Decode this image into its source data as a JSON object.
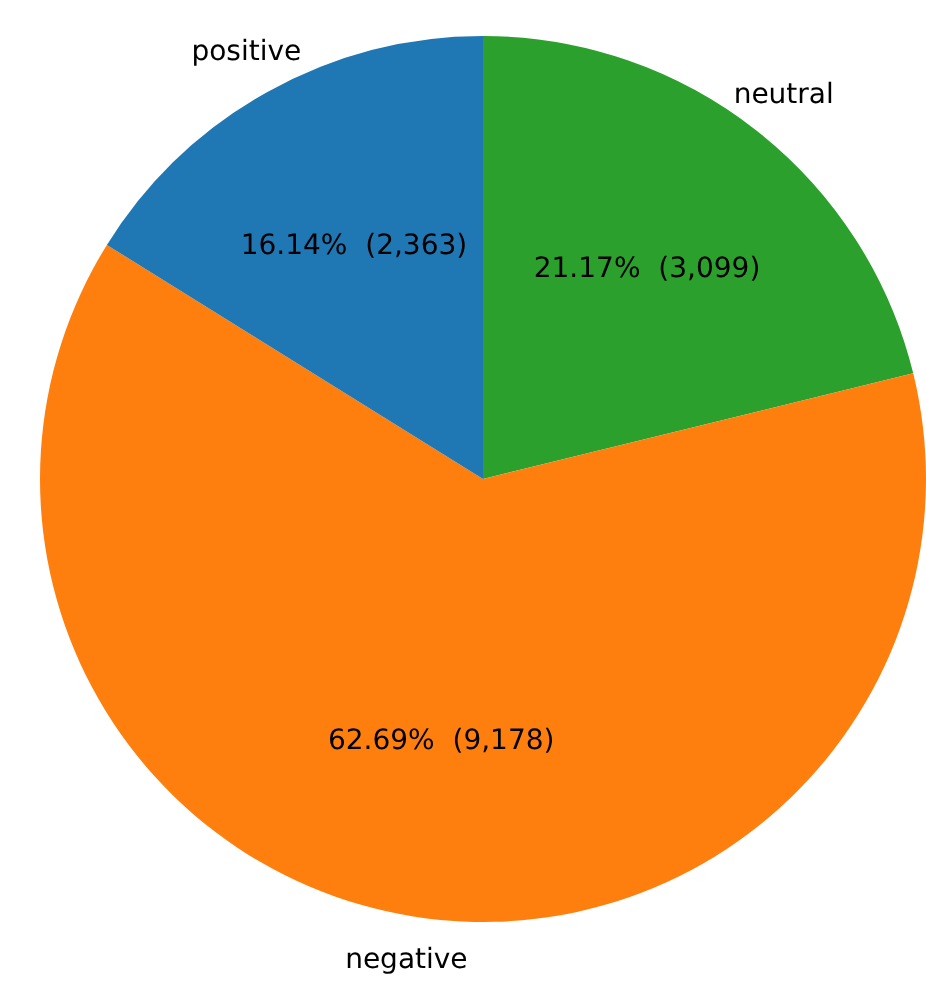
{
  "chart_data": {
    "type": "pie",
    "categories": [
      "neutral",
      "negative",
      "positive"
    ],
    "values": [
      3099,
      9178,
      2363
    ],
    "colors": [
      "#2ca02c",
      "#ff7f0e",
      "#1f77b4"
    ],
    "value_labels": [
      "21.17%  (3,099)",
      "62.69%  (9,178)",
      "16.14%  (2,363)"
    ],
    "legend": false
  }
}
